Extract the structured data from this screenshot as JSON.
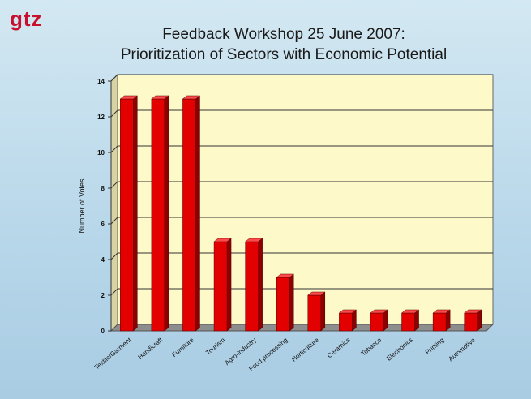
{
  "logo": {
    "text": "gtz"
  },
  "colors": {
    "bar": "#e30000",
    "plot_bg": "#fdf9c8",
    "floor": "#8d8d8d"
  },
  "chart_data": {
    "type": "bar",
    "title_line1": "Feedback Workshop 25 June 2007:",
    "title_line2": "Prioritization of Sectors with Economic Potential",
    "xlabel": "",
    "ylabel": "Number of Votes",
    "ylim": [
      0,
      14
    ],
    "yticks": [
      "0",
      "2",
      "4",
      "6",
      "8",
      "10",
      "12",
      "14"
    ],
    "grid": true,
    "categories": [
      "Textile/Garment",
      "Handicraft",
      "Furniture",
      "Tourism",
      "Agro-industry",
      "Food processing",
      "Horticulture",
      "Ceramics",
      "Tobacco",
      "Electronics",
      "Printing",
      "Automotive"
    ],
    "values": [
      13,
      13,
      13,
      5,
      5,
      3,
      2,
      1,
      1,
      1,
      1,
      1
    ]
  }
}
